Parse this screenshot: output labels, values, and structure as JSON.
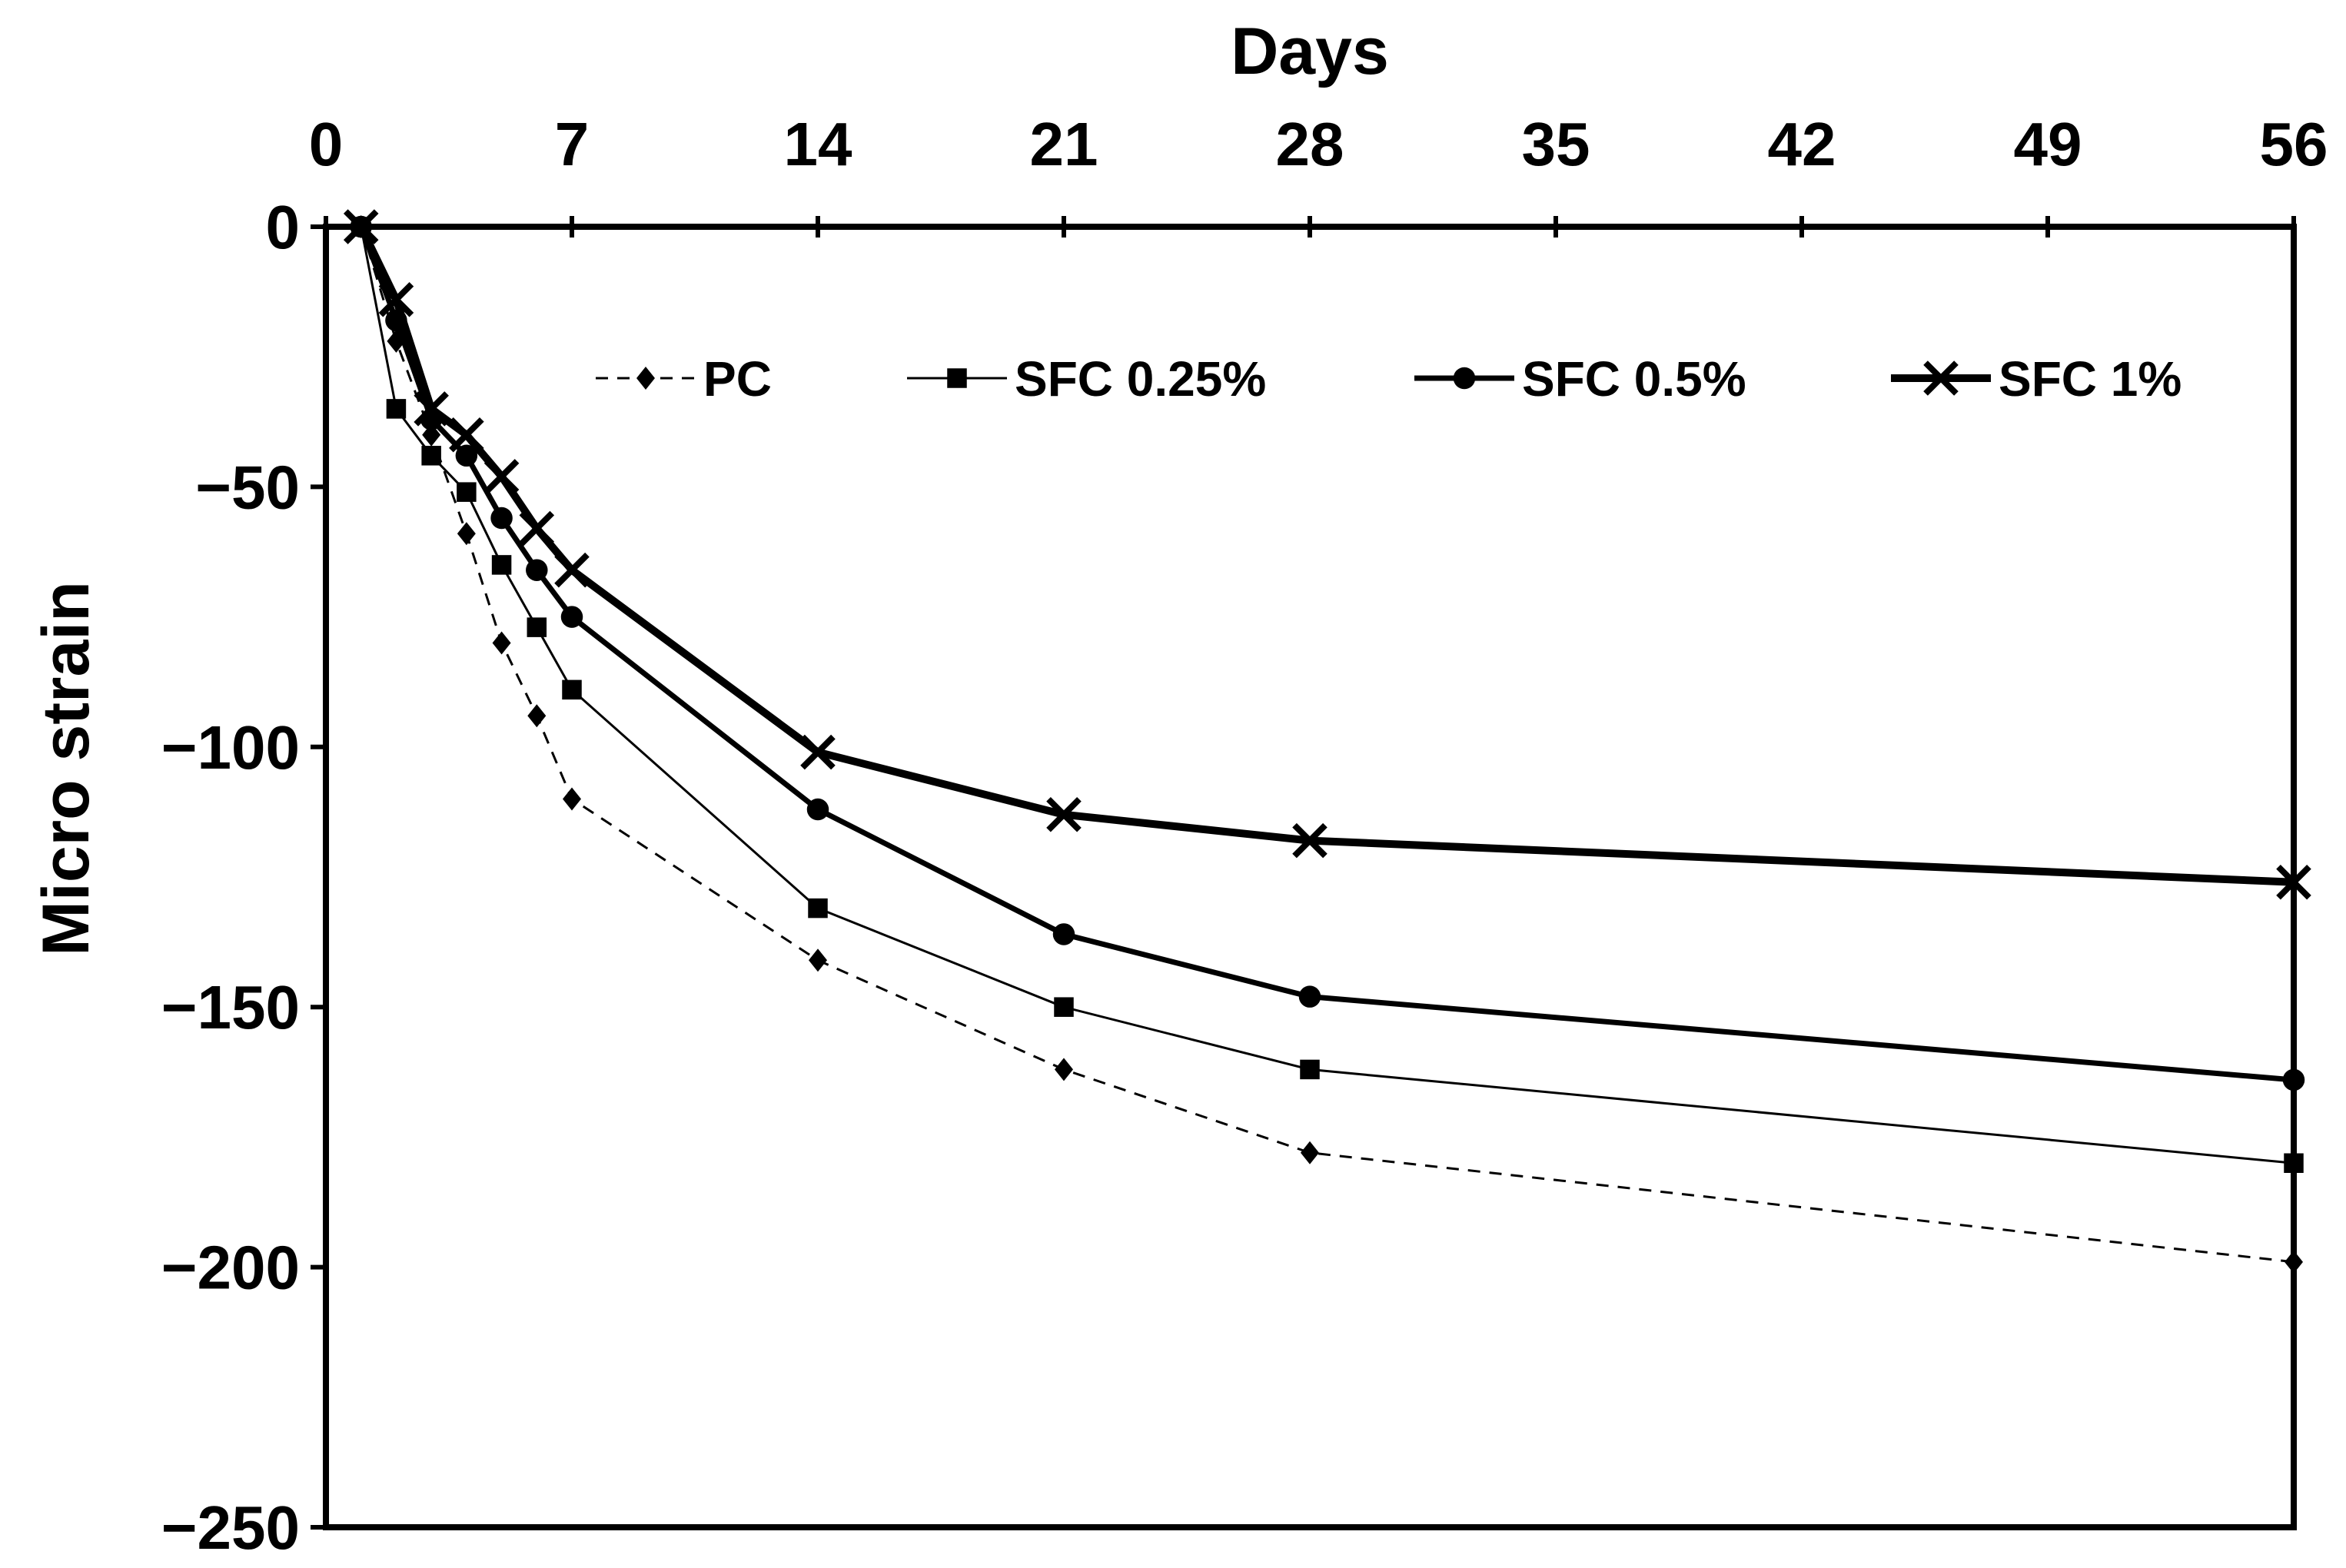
{
  "chart_data": {
    "type": "line",
    "title": "",
    "xlabel": "Days",
    "ylabel": "Micro strain",
    "xlim": [
      0,
      56
    ],
    "ylim": [
      -250,
      0
    ],
    "xticks": [
      0,
      7,
      14,
      21,
      28,
      35,
      42,
      49,
      56
    ],
    "yticks": [
      0,
      -50,
      -100,
      -150,
      -200,
      -250
    ],
    "xtick_labels": [
      "0",
      "7",
      "14",
      "21",
      "28",
      "35",
      "42",
      "49",
      "56"
    ],
    "ytick_labels": [
      "0",
      "−50",
      "−100",
      "−150",
      "−200",
      "−250"
    ],
    "x_axis_position": "top",
    "legend_position": "top-inside",
    "grid": false,
    "series": [
      {
        "name": "PC",
        "marker": "diamond",
        "line": "dashed",
        "x": [
          1,
          2,
          3,
          4,
          5,
          6,
          7,
          14,
          21,
          28,
          56
        ],
        "values": [
          0,
          -22,
          -40,
          -59,
          -80,
          -94,
          -110,
          -141,
          -162,
          -178,
          -199
        ]
      },
      {
        "name": "SFC 0.25%",
        "marker": "square",
        "line": "thin",
        "x": [
          1,
          2,
          3,
          4,
          5,
          6,
          7,
          14,
          21,
          28,
          56
        ],
        "values": [
          0,
          -35,
          -44,
          -51,
          -65,
          -77,
          -89,
          -131,
          -150,
          -162,
          -180
        ]
      },
      {
        "name": "SFC 0.5%",
        "marker": "circle",
        "line": "medium",
        "x": [
          1,
          2,
          3,
          4,
          5,
          6,
          7,
          14,
          21,
          28,
          56
        ],
        "values": [
          0,
          -18,
          -37,
          -44,
          -56,
          -66,
          -75,
          -112,
          -136,
          -148,
          -164
        ]
      },
      {
        "name": "SFC 1%",
        "marker": "x",
        "line": "thick",
        "x": [
          1,
          2,
          3,
          4,
          5,
          6,
          7,
          14,
          21,
          28,
          56
        ],
        "values": [
          0,
          -14,
          -35,
          -40,
          -48,
          -58,
          -66,
          -101,
          -113,
          -118,
          -126
        ]
      }
    ]
  }
}
